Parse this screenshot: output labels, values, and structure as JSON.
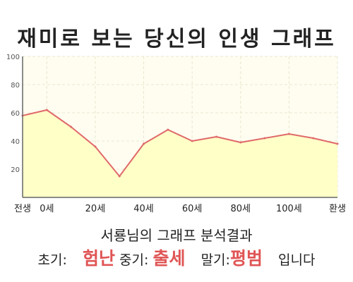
{
  "header": {
    "title": "재미로 보는 당신의 인생 그래프"
  },
  "chart_data": {
    "type": "area",
    "x": [
      "전생",
      "0세",
      "",
      "20세",
      "",
      "40세",
      "",
      "60세",
      "",
      "80세",
      "",
      "100세",
      "",
      "환생"
    ],
    "values": [
      58,
      62,
      50,
      36,
      15,
      38,
      48,
      40,
      43,
      39,
      42,
      45,
      42,
      38
    ],
    "xticks": [
      "전생",
      "0세",
      "20세",
      "40세",
      "60세",
      "80세",
      "100세",
      "환생"
    ],
    "yticks": [
      20,
      40,
      60,
      80,
      100
    ],
    "ylim": [
      0,
      100
    ],
    "grid": true,
    "colors": {
      "line": "#e06a6a",
      "fill": "#ffffc8",
      "plot_bg": "#fffdf0",
      "grid": "#e9e6cf",
      "axis": "#666666"
    }
  },
  "result": {
    "title": "서룡님의 그래프 분석결과",
    "early_label": "초기:",
    "early_value": "험난",
    "mid_label": "중기:",
    "mid_value": "출세",
    "late_label": "말기:",
    "late_value": "평범",
    "suffix": "입니다"
  }
}
